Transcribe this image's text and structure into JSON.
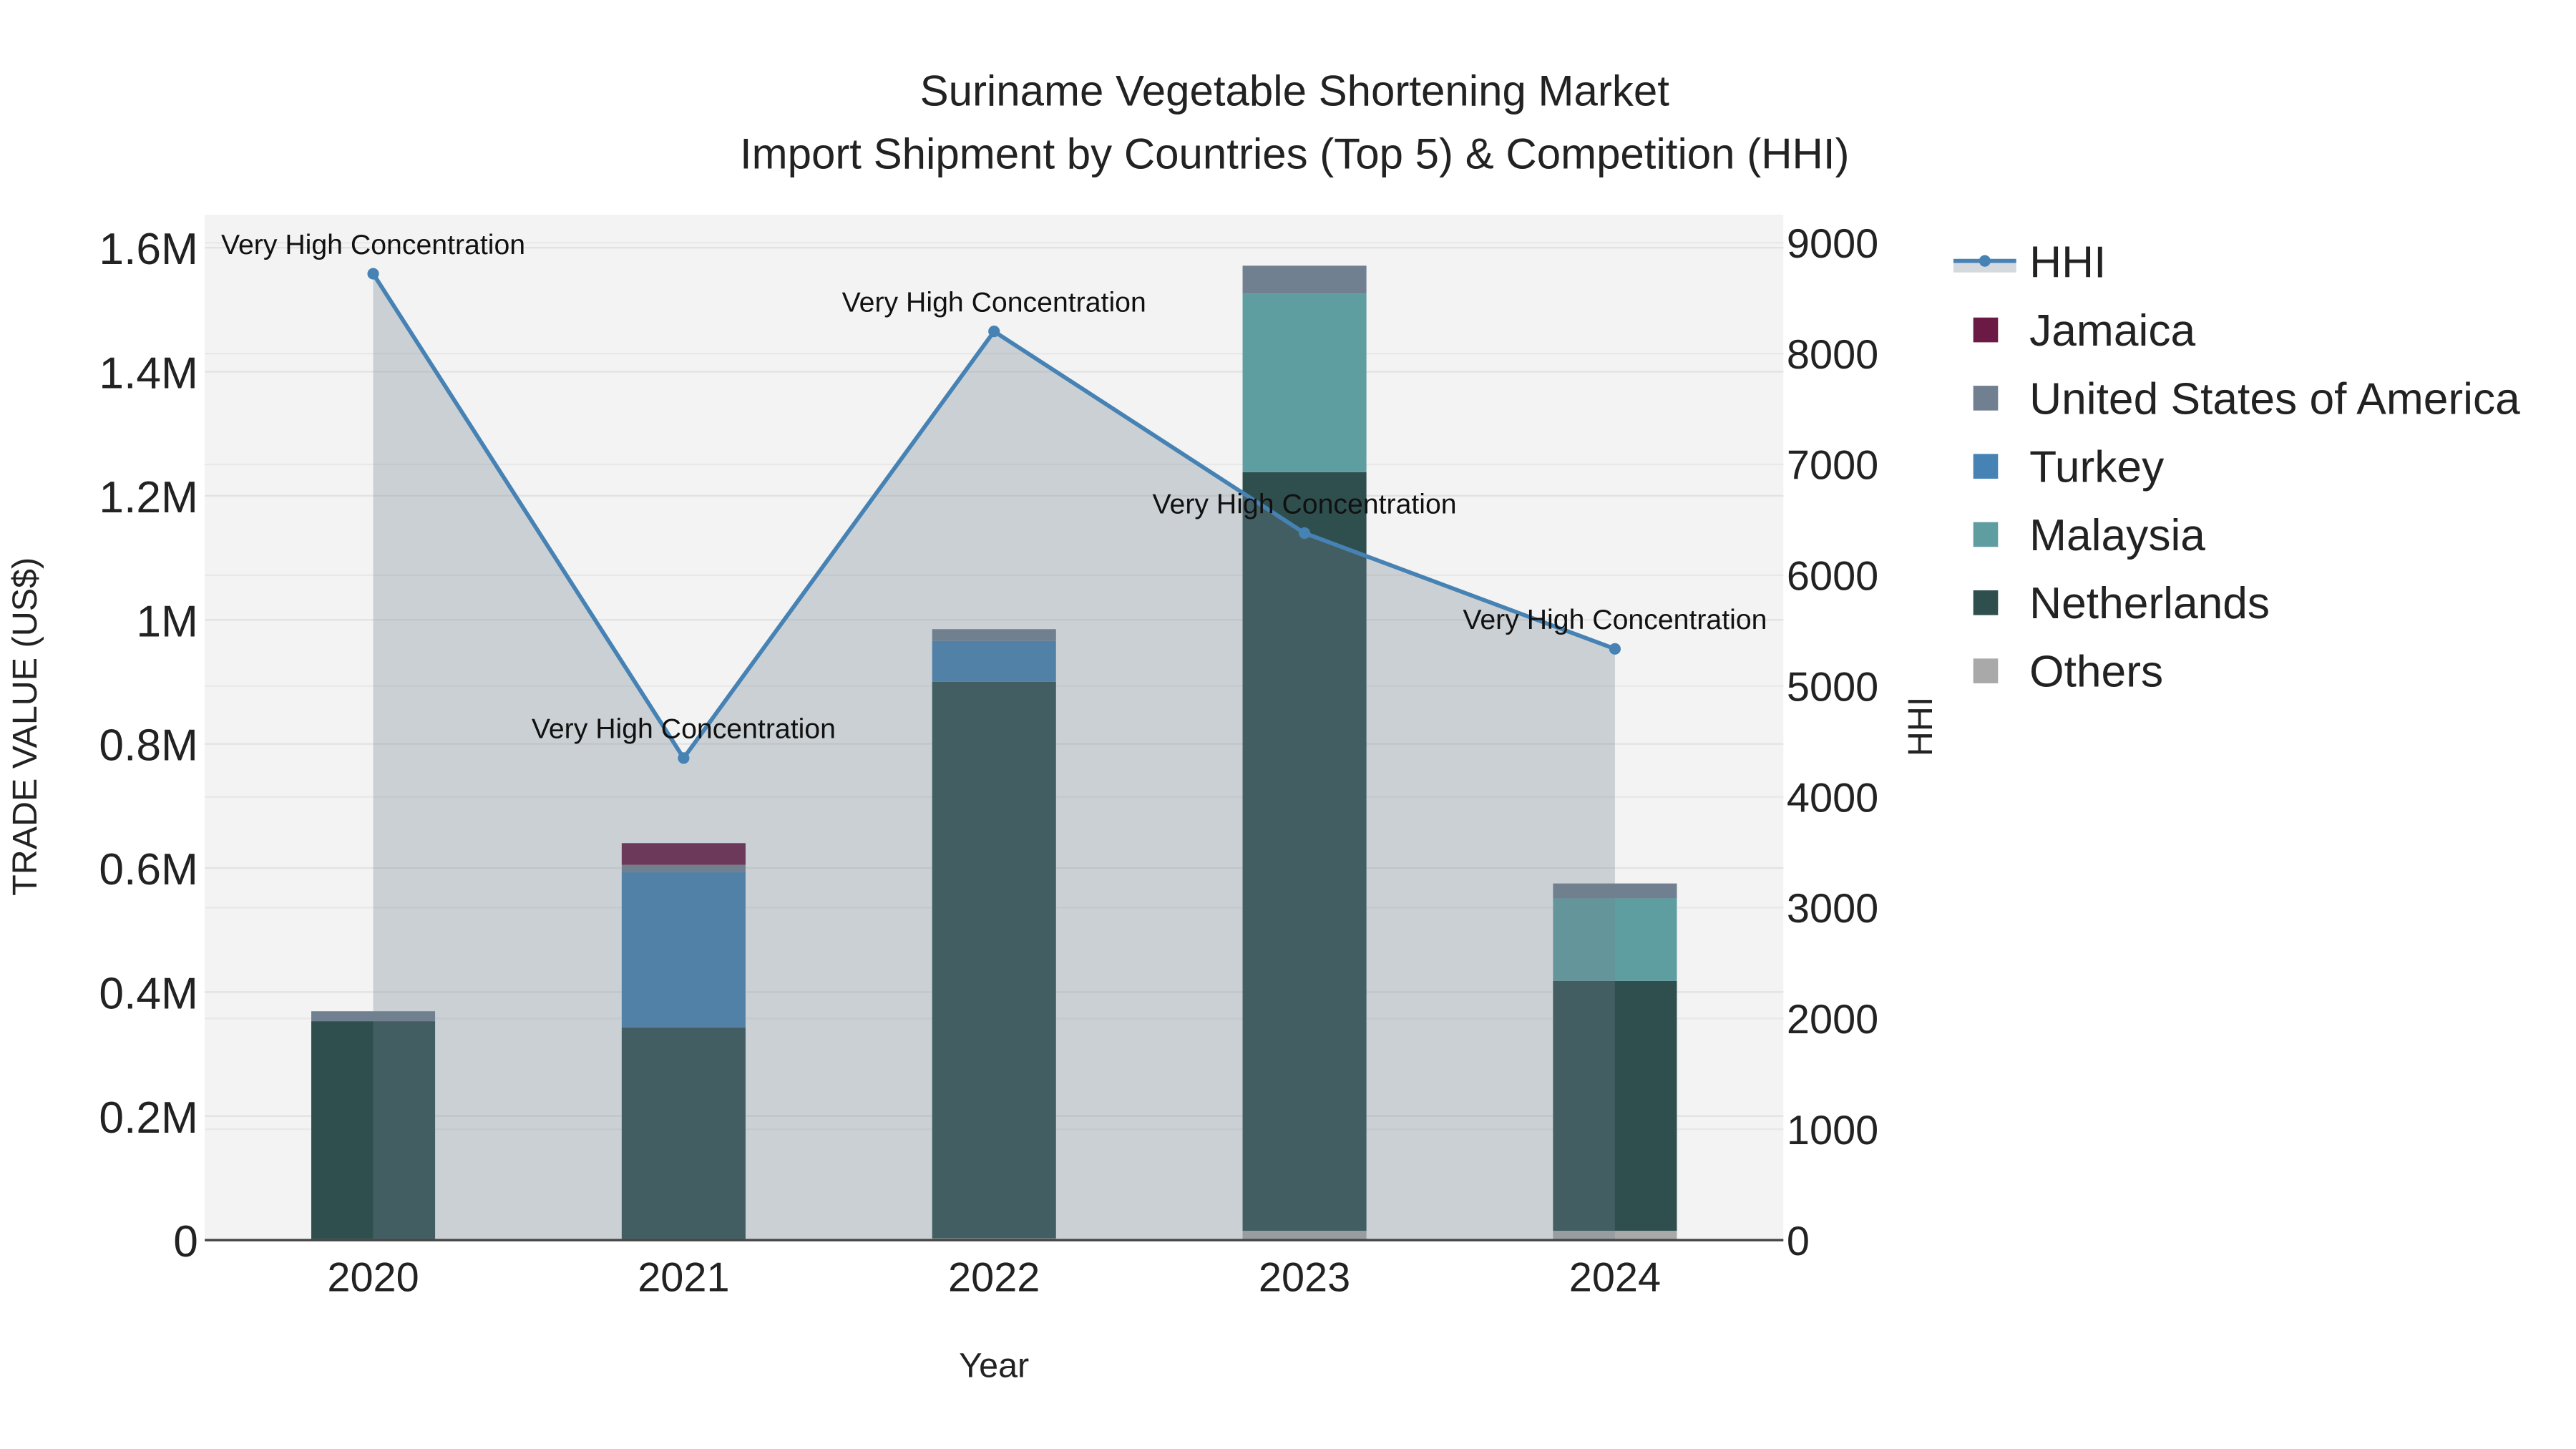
{
  "chart_data": {
    "type": "bar",
    "title": "Suriname Vegetable Shortening Market",
    "subtitle": "Import Shipment by Countries (Top 5) & Competition (HHI)",
    "xlabel": "Year",
    "ylabel": "TRADE VALUE (US$)",
    "y2label": "HHI",
    "categories": [
      "2020",
      "2021",
      "2022",
      "2023",
      "2024"
    ],
    "ylim": [
      0,
      1650000
    ],
    "y2lim": [
      0,
      9250
    ],
    "yticks": [
      0,
      200000,
      400000,
      600000,
      800000,
      1000000,
      1200000,
      1400000,
      1600000
    ],
    "ytick_labels": [
      "0",
      "0.2M",
      "0.4M",
      "0.6M",
      "0.8M",
      "1M",
      "1.2M",
      "1.4M",
      "1.6M"
    ],
    "y2ticks": [
      0,
      1000,
      2000,
      3000,
      4000,
      5000,
      6000,
      7000,
      8000,
      9000
    ],
    "y2tick_labels": [
      "0",
      "1000",
      "2000",
      "3000",
      "4000",
      "5000",
      "6000",
      "7000",
      "8000",
      "9000"
    ],
    "stacked": true,
    "series": [
      {
        "name": "Others",
        "color": "#A9A9A9",
        "values": [
          2000,
          2000,
          3000,
          15000,
          15000
        ]
      },
      {
        "name": "Netherlands",
        "color": "#2F4F4F",
        "values": [
          351000,
          341000,
          897000,
          1223000,
          403000
        ]
      },
      {
        "name": "Malaysia",
        "color": "#5F9EA0",
        "values": [
          0,
          0,
          0,
          288000,
          133000
        ]
      },
      {
        "name": "Turkey",
        "color": "#4682B4",
        "values": [
          0,
          250000,
          66000,
          0,
          0
        ]
      },
      {
        "name": "United States of America",
        "color": "#708090",
        "values": [
          16000,
          12000,
          19000,
          45000,
          24000
        ]
      },
      {
        "name": "Jamaica",
        "color": "#6B1A45",
        "values": [
          0,
          35000,
          0,
          0,
          0
        ]
      }
    ],
    "hhi": {
      "name": "HHI",
      "color": "#4682B4",
      "values": [
        8720,
        4350,
        8200,
        6380,
        5335
      ],
      "annotations": [
        "Very High Concentration",
        "Very High Concentration",
        "Very High Concentration",
        "Very High Concentration",
        "Very High Concentration"
      ]
    },
    "legend_order": [
      "HHI",
      "Jamaica",
      "United States of America",
      "Turkey",
      "Malaysia",
      "Netherlands",
      "Others"
    ],
    "legend_placement": "right",
    "grid": true
  }
}
